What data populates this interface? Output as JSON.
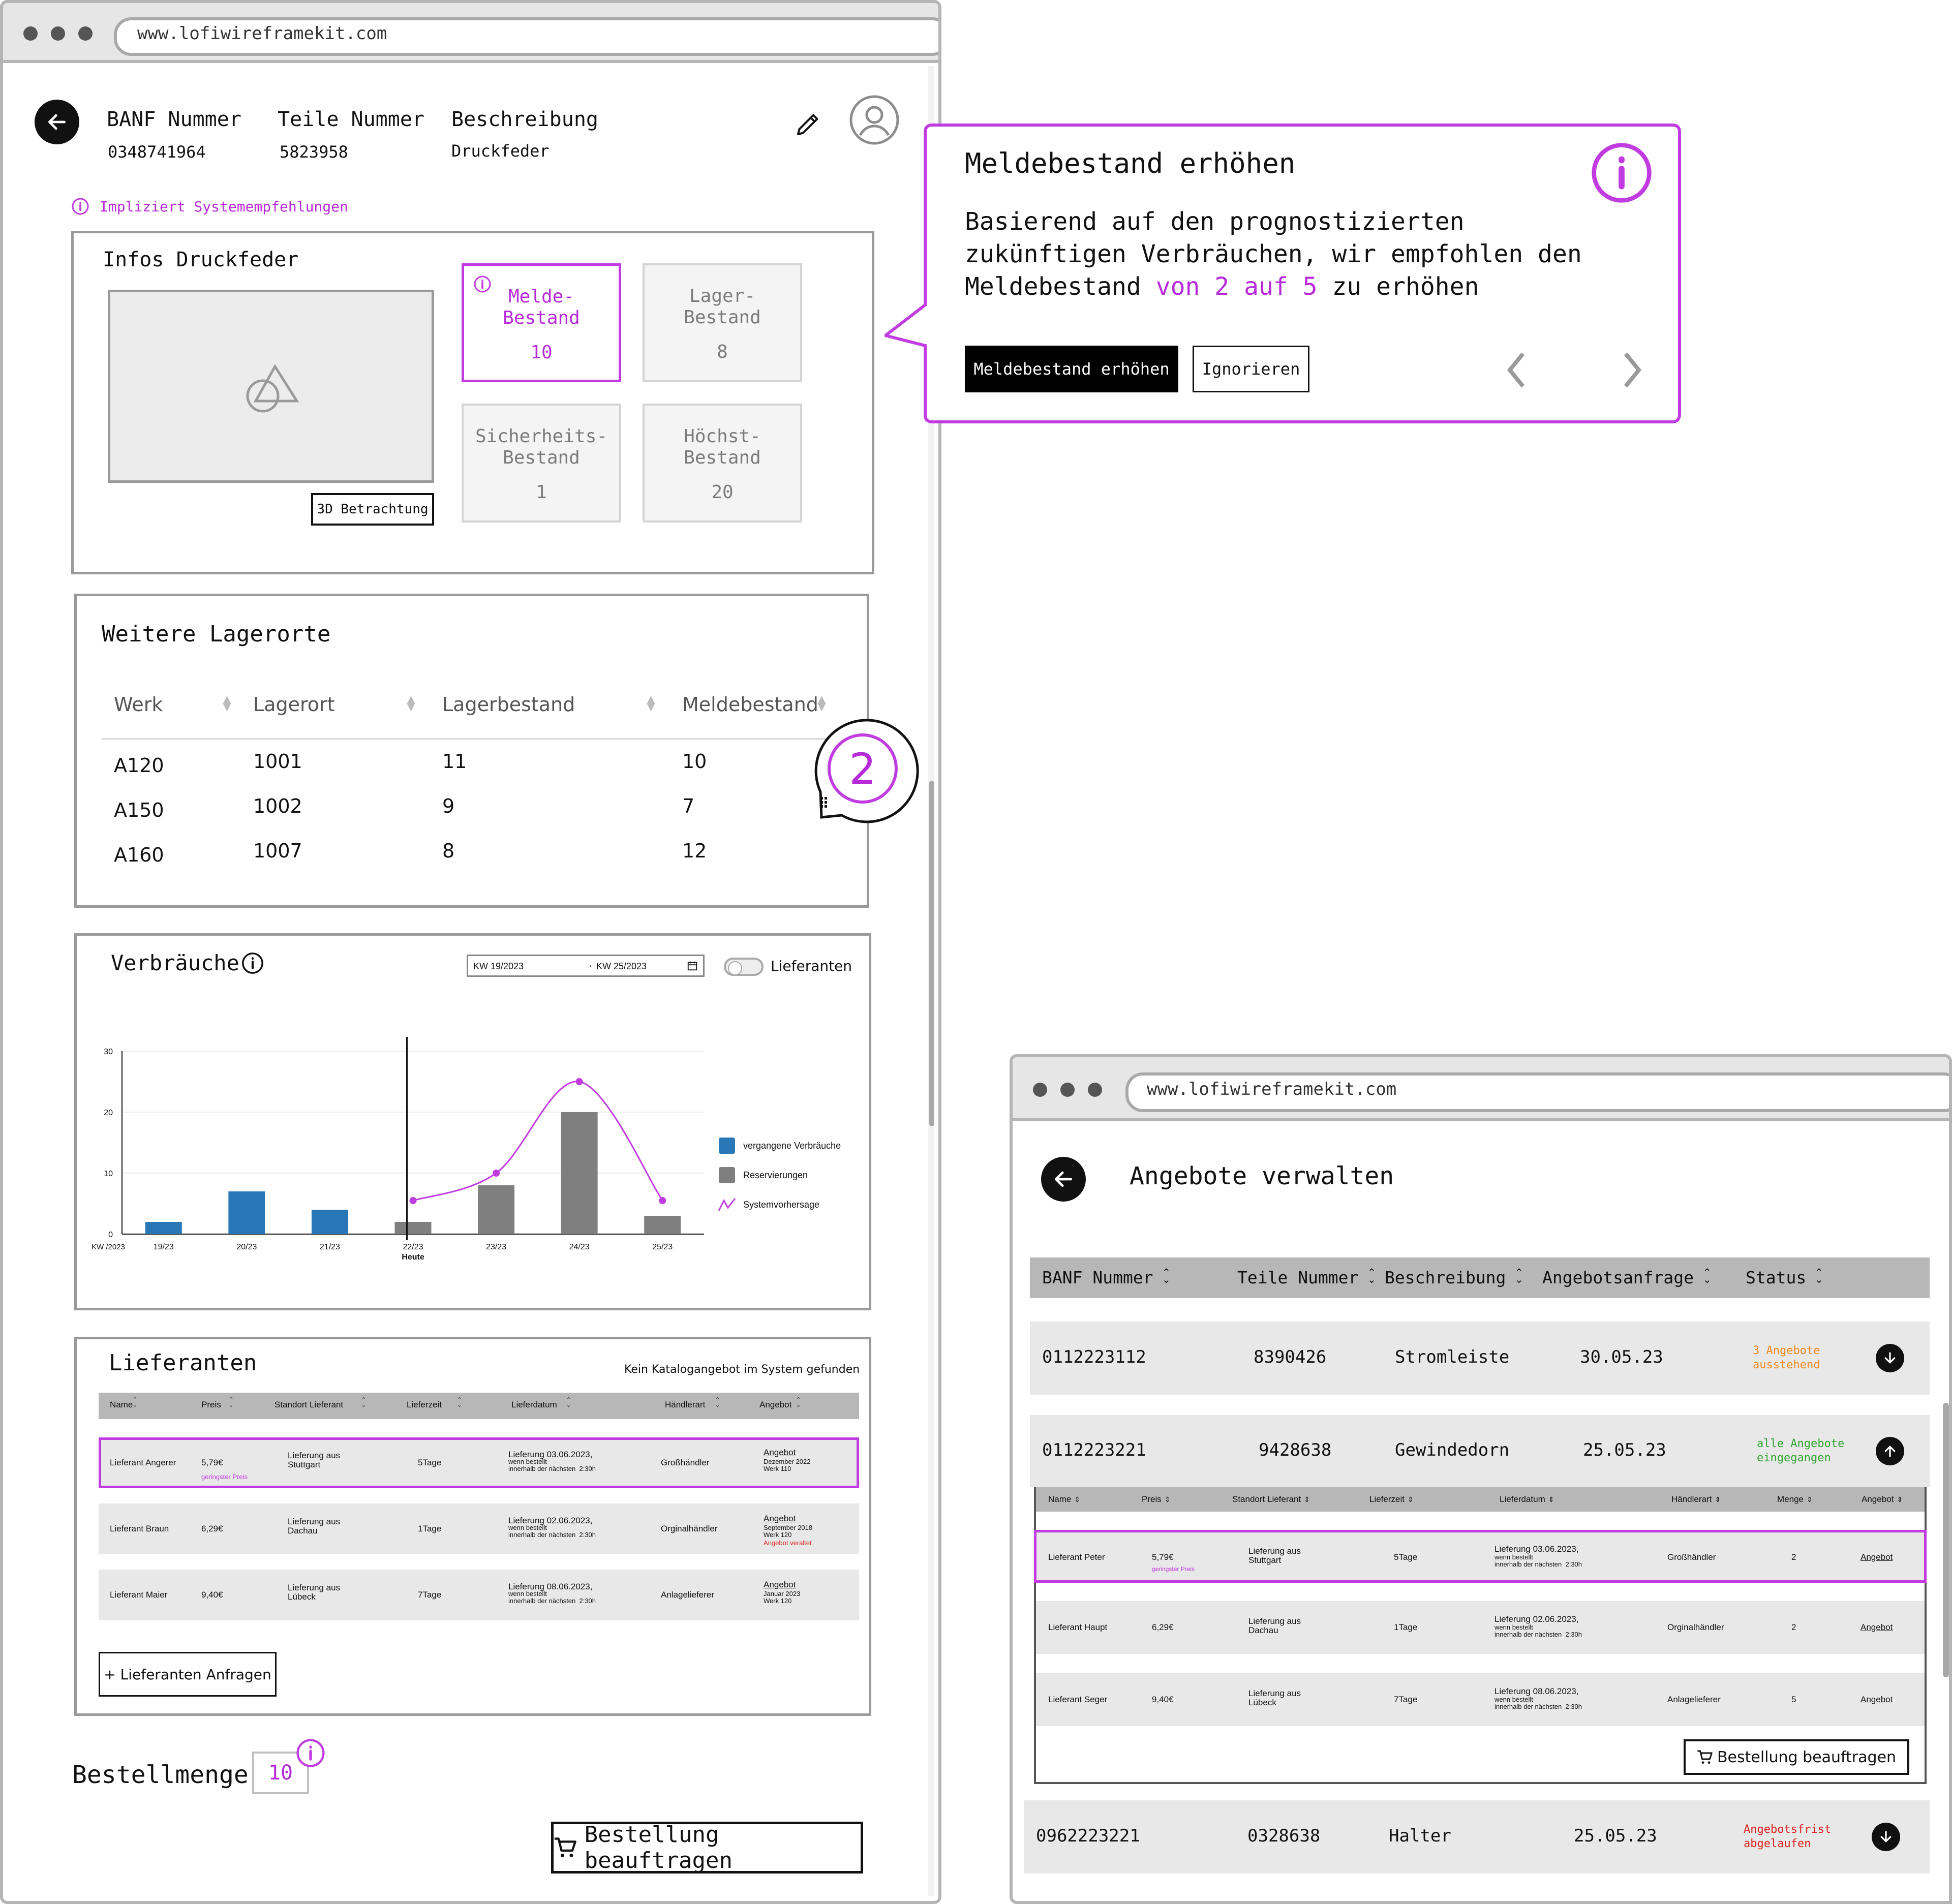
{
  "browser_left": {
    "url": "www.lofiwireframekit.com"
  },
  "header": {
    "banf_label": "BANF Nummer",
    "banf_value": "0348741964",
    "teile_label": "Teile Nummer",
    "teile_value": "5823958",
    "beschreibung_label": "Beschreibung",
    "beschreibung_value": "Druckfeder"
  },
  "hint": "Impliziert Systemempfehlungen",
  "infos": {
    "title": "Infos Druckfeder",
    "view_button": "3D Betrachtung",
    "cards": [
      {
        "line1": "Melde-",
        "line2": "Bestand",
        "value": "10"
      },
      {
        "line1": "Lager-",
        "line2": "Bestand",
        "value": "8"
      },
      {
        "line1": "Sicherheits-",
        "line2": "Bestand",
        "value": "1"
      },
      {
        "line1": "Höchst-",
        "line2": "Bestand",
        "value": "20"
      }
    ]
  },
  "popover": {
    "title": "Meldebestand erhöhen",
    "text_line1": "Basierend auf den prognostizierten",
    "text_line2": "zukünftigen Verbräuchen, wir empfohlen den",
    "text_line3_a": "Meldebestand ",
    "text_line3_highlight": "von 2 auf 5",
    "text_line3_b": " zu erhöhen",
    "primary_button": "Meldebestand erhöhen",
    "secondary_button": "Ignorieren"
  },
  "lagerorte": {
    "title": "Weitere Lagerorte",
    "columns": [
      "Werk",
      "Lagerort",
      "Lagerbestand",
      "Meldebestand"
    ],
    "rows": [
      [
        "A120",
        "1001",
        "11",
        "10"
      ],
      [
        "A150",
        "1002",
        "9",
        "7"
      ],
      [
        "A160",
        "1007",
        "8",
        "12"
      ]
    ],
    "comment_badge": "2"
  },
  "verbraeuche": {
    "title": "Verbräuche",
    "date_from": "KW 19/2023",
    "date_to": "KW 25/2023",
    "toggle_label": "Lieferanten"
  },
  "chart_data": {
    "type": "bar",
    "xlabel_prefix": "KW /2023",
    "categories": [
      "19/23",
      "20/23",
      "21/23",
      "22/23",
      "23/23",
      "24/23",
      "25/23"
    ],
    "today_label": "Heute",
    "today_category": "22/23",
    "ylim": [
      0,
      30
    ],
    "yticks": [
      "0",
      "10",
      "20",
      "30"
    ],
    "series": [
      {
        "name": "vergangene Verbräuche",
        "type": "bar",
        "color": "#2a77b8",
        "values": [
          2,
          7,
          4,
          null,
          null,
          null,
          null
        ]
      },
      {
        "name": "Reservierungen",
        "type": "bar",
        "color": "#7f7f7f",
        "values": [
          null,
          null,
          null,
          2,
          8,
          20,
          3
        ]
      },
      {
        "name": "Systemvorhersage",
        "type": "line",
        "color": "#c13ce0",
        "values": [
          null,
          null,
          null,
          5.5,
          10,
          25,
          5.5
        ]
      }
    ],
    "legend_position": "right"
  },
  "lieferanten": {
    "title": "Lieferanten",
    "note": "Kein Katalogangebot im System gefunden",
    "columns": [
      "Name",
      "Preis",
      "Standort Lieferant",
      "Lieferzeit",
      "Lieferdatum",
      "Händlerart",
      "Angebot"
    ],
    "rows": [
      {
        "name": "Lieferant Angerer",
        "preis": "5,79€",
        "preis_note": "geringster Preis",
        "standort1": "Lieferung aus",
        "standort2": "Stuttgart",
        "zeit": "5Tage",
        "datum1": "Lieferung 03.06.2023,",
        "datum2": "wenn bestellt",
        "datum3": "innerhalb der nächsten  2:30h",
        "art": "Großhändler",
        "angebot": "Angebot",
        "angebot2": "Dezember 2022",
        "angebot3": "Werk 110",
        "warn": ""
      },
      {
        "name": "Lieferant Braun",
        "preis": "6,29€",
        "preis_note": "",
        "standort1": "Lieferung aus",
        "standort2": "Dachau",
        "zeit": "1Tage",
        "datum1": "Lieferung 02.06.2023,",
        "datum2": "wenn bestellt",
        "datum3": "innerhalb der nächsten  2:30h",
        "art": "Orginalhändler",
        "angebot": "Angebot",
        "angebot2": "September 2018",
        "angebot3": "Werk 120",
        "warn": "Angebot veraltet"
      },
      {
        "name": "Lieferant Maier",
        "preis": "9,40€",
        "preis_note": "",
        "standort1": "Lieferung aus",
        "standort2": "Lübeck",
        "zeit": "7Tage",
        "datum1": "Lieferung 08.06.2023,",
        "datum2": "wenn bestellt",
        "datum3": "innerhalb der nächsten  2:30h",
        "art": "Anlagelieferer",
        "angebot": "Angebot",
        "angebot2": "Januar 2023",
        "angebot3": "Werk 120",
        "warn": ""
      }
    ],
    "add_button": "+ Lieferanten Anfragen"
  },
  "bestellmenge": {
    "label": "Bestellmenge",
    "value": "10"
  },
  "order_button": "Bestellung beauftragen",
  "browser_right": {
    "url": "www.lofiwireframekit.com"
  },
  "angebote": {
    "title": "Angebote verwalten",
    "columns": [
      "BANF Nummer",
      "Teile Nummer",
      "Beschreibung",
      "Angebotsanfrage",
      "Status"
    ],
    "rows": [
      {
        "banf": "0112223112",
        "teile": "8390426",
        "beschr": "Stromleiste",
        "datum": "30.05.23",
        "status1": "3 Angebote",
        "status2": "ausstehend",
        "status_color": "#f08a1c"
      },
      {
        "banf": "0112223221",
        "teile": "9428638",
        "beschr": "Gewindedorn",
        "datum": "25.05.23",
        "status1": "alle Angebote",
        "status2": "eingegangen",
        "status_color": "#2fa52f"
      },
      {
        "banf": "0962223221",
        "teile": "0328638",
        "beschr": "Halter",
        "datum": "25.05.23",
        "status1": "Angebotsfrist",
        "status2": "abgelaufen",
        "status_color": "#e02020"
      }
    ],
    "sub_columns": [
      "Name",
      "Preis",
      "Standort Lieferant",
      "Lieferzeit",
      "Lieferdatum",
      "Händlerart",
      "Menge",
      "Angebot"
    ],
    "sub_rows": [
      {
        "name": "Lieferant Peter",
        "preis": "5,79€",
        "preis_note": "geringster Preis",
        "standort1": "Lieferung aus",
        "standort2": "Stuttgart",
        "zeit": "5Tage",
        "datum1": "Lieferung 03.06.2023,",
        "datum2": "wenn bestellt",
        "datum3": "innerhalb der nächsten  2:30h",
        "art": "Großhändler",
        "menge": "2",
        "angebot": "Angebot"
      },
      {
        "name": "Lieferant Haupt",
        "preis": "6,29€",
        "preis_note": "",
        "standort1": "Lieferung aus",
        "standort2": "Dachau",
        "zeit": "1Tage",
        "datum1": "Lieferung 02.06.2023,",
        "datum2": "wenn bestellt",
        "datum3": "innerhalb der nächsten  2:30h",
        "art": "Orginalhändler",
        "menge": "2",
        "angebot": "Angebot"
      },
      {
        "name": "Lieferant Seger",
        "preis": "9,40€",
        "preis_note": "",
        "standort1": "Lieferung aus",
        "standort2": "Lübeck",
        "zeit": "7Tage",
        "datum1": "Lieferung 08.06.2023,",
        "datum2": "wenn bestellt",
        "datum3": "innerhalb der nächsten  2:30h",
        "art": "Anlagelieferer",
        "menge": "5",
        "angebot": "Angebot"
      }
    ],
    "sub_order_button": "Bestellung beauftragen"
  }
}
